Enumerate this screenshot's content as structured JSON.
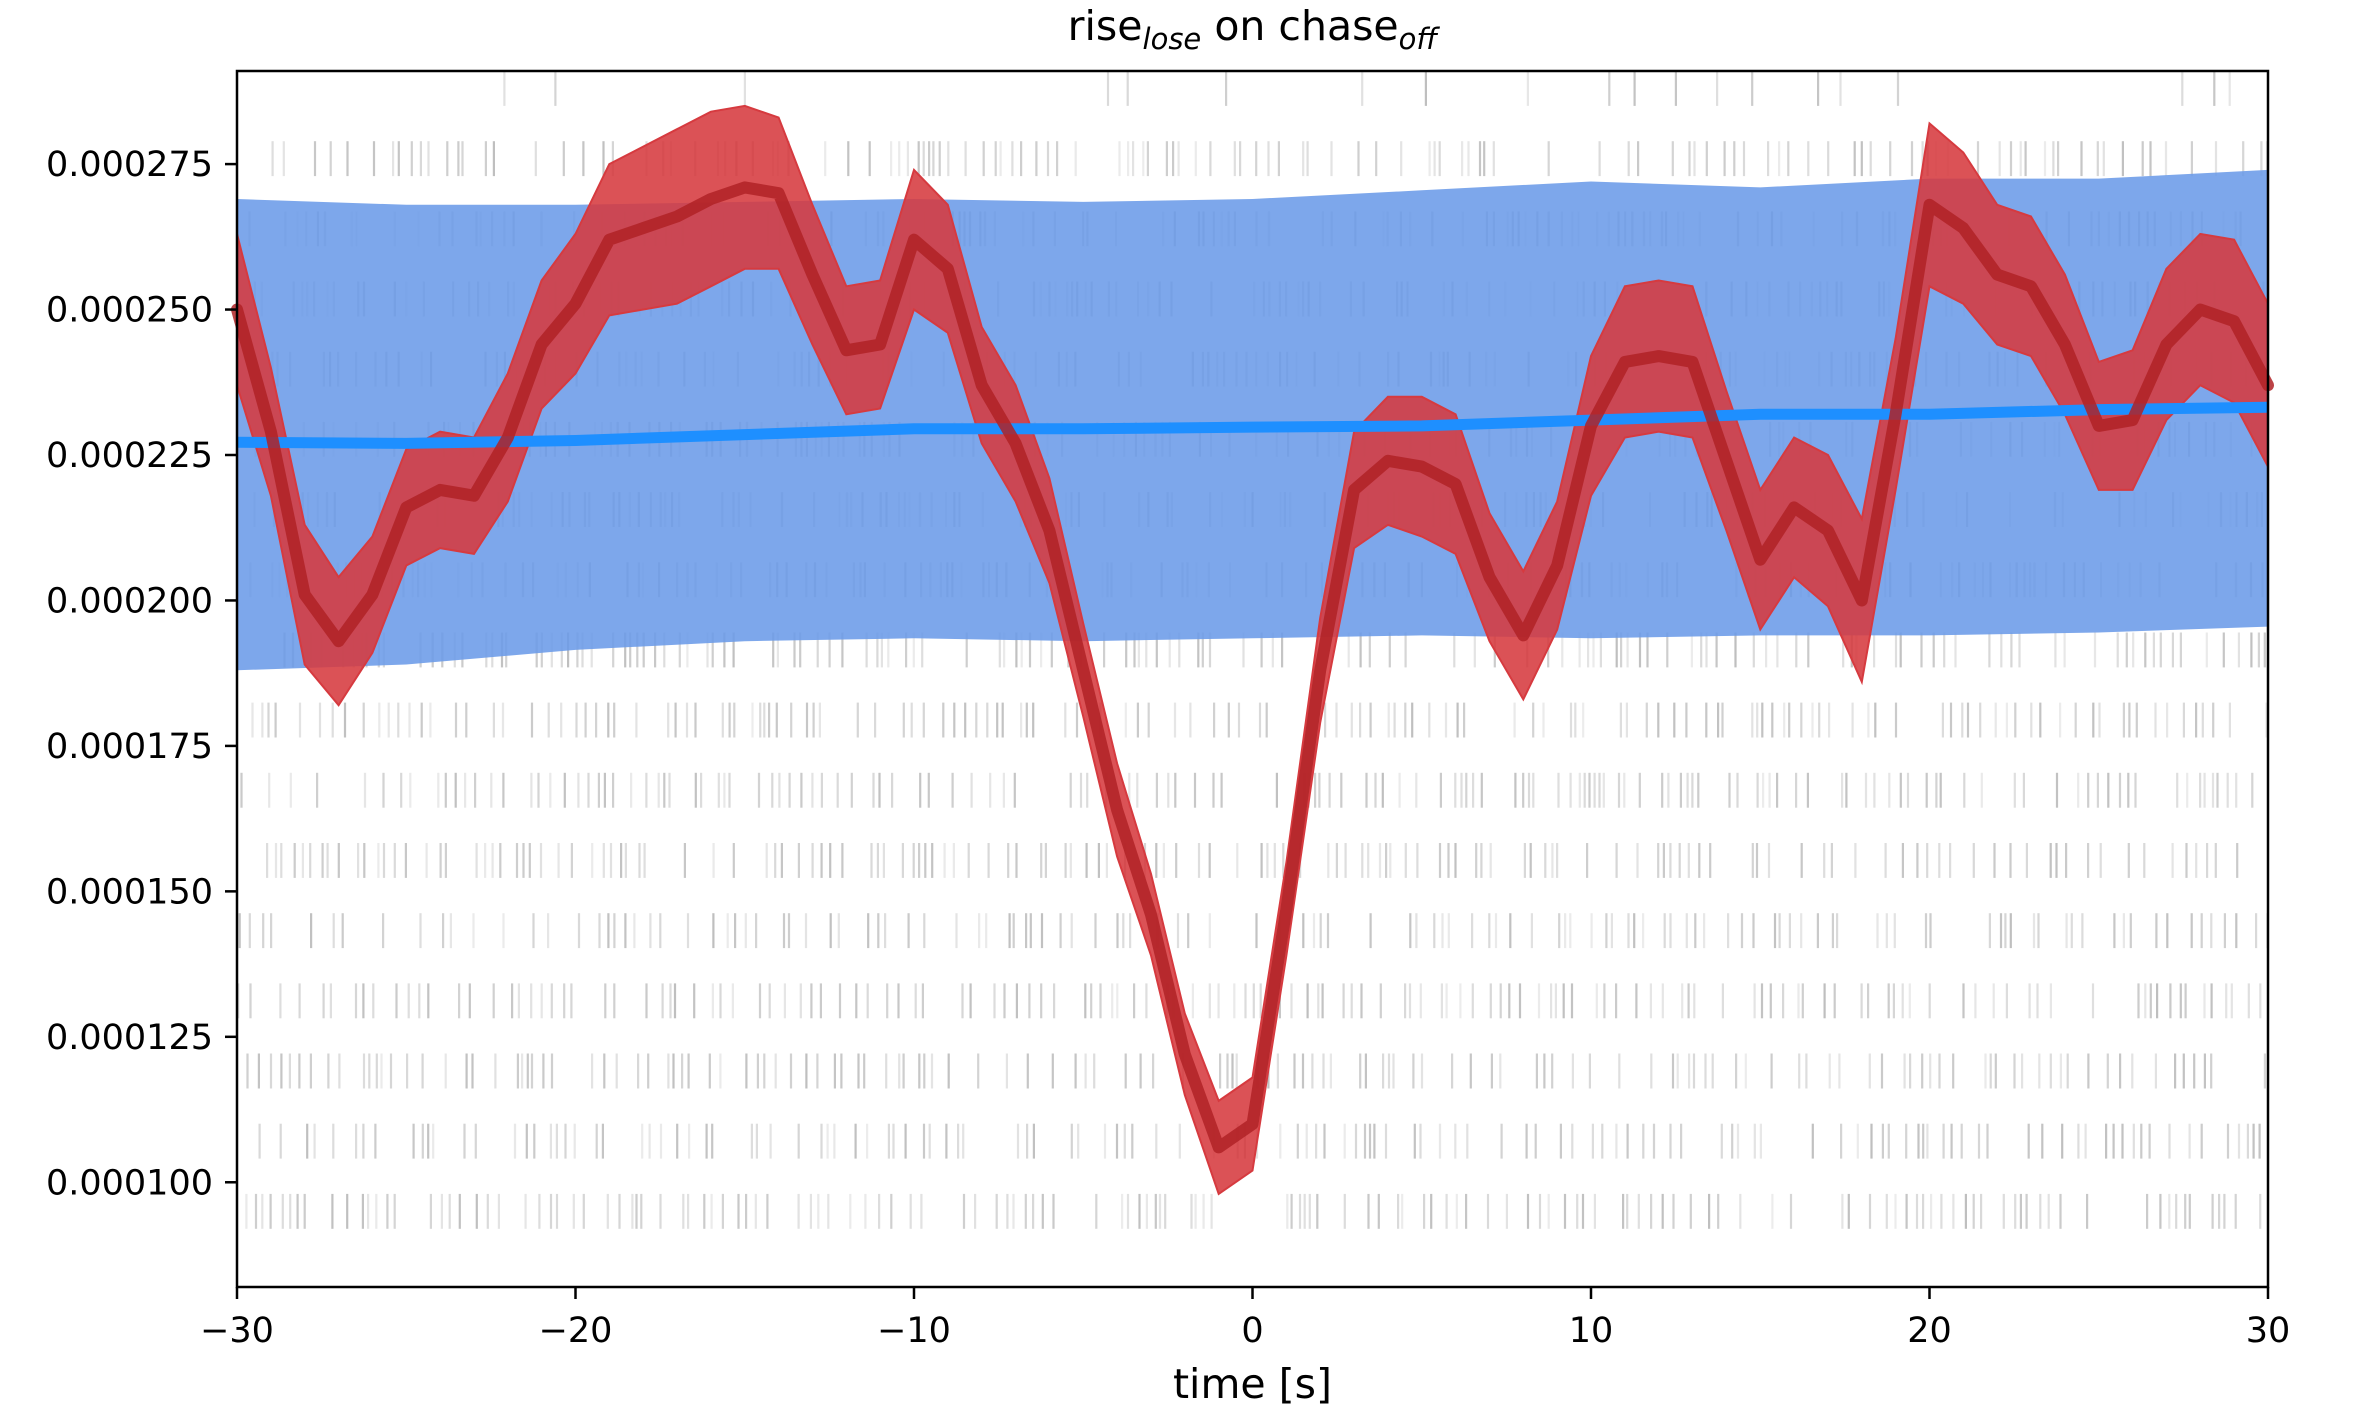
{
  "chart_data": {
    "type": "line",
    "title": {
      "main": "rise",
      "sub1": "lose",
      "mid": " on chase",
      "sub2": "off"
    },
    "xlabel": "time [s]",
    "ylabel": "",
    "xlim": [
      -30,
      30
    ],
    "ylim": [
      8.2e-05,
      0.000291
    ],
    "xticks": [
      -30,
      -20,
      -10,
      0,
      10,
      20,
      30
    ],
    "xtick_labels": [
      "−30",
      "−20",
      "−10",
      "0",
      "10",
      "20",
      "30"
    ],
    "yticks": [
      0.0001,
      0.000125,
      0.00015,
      0.000175,
      0.0002,
      0.000225,
      0.00025,
      0.000275
    ],
    "ytick_labels": [
      "0.000100",
      "0.000125",
      "0.000150",
      "0.000175",
      "0.000200",
      "0.000225",
      "0.000250",
      "0.000275"
    ],
    "grid": false,
    "colors": {
      "baseline_line": "#1e8fff",
      "baseline_band": "#6b9be8",
      "event_line": "#b02226",
      "event_band": "#d63a3f",
      "raster": "#808080"
    },
    "series": [
      {
        "role": "baseline",
        "x": [
          -30,
          -25,
          -20,
          -15,
          -10,
          -5,
          0,
          5,
          10,
          15,
          20,
          25,
          30
        ],
        "mean": [
          0.0002272,
          0.000227,
          0.0002275,
          0.0002285,
          0.0002295,
          0.0002295,
          0.0002298,
          0.00023,
          0.000231,
          0.000232,
          0.000232,
          0.0002328,
          0.0002332
        ],
        "upper": [
          0.000269,
          0.000268,
          0.000268,
          0.0002685,
          0.000269,
          0.0002685,
          0.000269,
          0.0002705,
          0.000272,
          0.000271,
          0.0002725,
          0.0002725,
          0.000274
        ],
        "lower": [
          0.000188,
          0.000189,
          0.0001915,
          0.000193,
          0.0001935,
          0.000193,
          0.0001935,
          0.000194,
          0.0001935,
          0.000194,
          0.000194,
          0.0001945,
          0.0001955
        ]
      },
      {
        "role": "event",
        "x": [
          -30,
          -29,
          -28,
          -27,
          -26,
          -25,
          -24,
          -23,
          -22,
          -21,
          -20,
          -19,
          -18,
          -17,
          -16,
          -15,
          -14,
          -13,
          -12,
          -11,
          -10,
          -9,
          -8,
          -7,
          -6,
          -5,
          -4,
          -3,
          -2,
          -1,
          0,
          1,
          2,
          3,
          4,
          5,
          6,
          7,
          8,
          9,
          10,
          11,
          12,
          13,
          14,
          15,
          16,
          17,
          18,
          19,
          20,
          21,
          22,
          23,
          24,
          25,
          26,
          27,
          28,
          29,
          30
        ],
        "mean": [
          0.00025,
          0.000229,
          0.000201,
          0.000193,
          0.000201,
          0.000216,
          0.000219,
          0.000218,
          0.000228,
          0.000244,
          0.000251,
          0.000262,
          0.000264,
          0.000266,
          0.000269,
          0.000271,
          0.00027,
          0.000256,
          0.000243,
          0.000244,
          0.000262,
          0.000257,
          0.000237,
          0.000227,
          0.000212,
          0.000188,
          0.000164,
          0.000146,
          0.000122,
          0.000106,
          0.00011,
          0.000147,
          0.000188,
          0.000219,
          0.000224,
          0.000223,
          0.00022,
          0.000204,
          0.000194,
          0.000206,
          0.00023,
          0.000241,
          0.000242,
          0.000241,
          0.000224,
          0.000207,
          0.000216,
          0.000212,
          0.0002,
          0.000232,
          0.000268,
          0.000264,
          0.000256,
          0.000254,
          0.000244,
          0.00023,
          0.000231,
          0.000244,
          0.00025,
          0.000248,
          0.000237
        ]
      }
    ],
    "event_band_width": [
      1.3e-05,
      1.1e-05,
      1.2e-05,
      1.1e-05,
      1e-05,
      1e-05,
      1e-05,
      1e-05,
      1.1e-05,
      1.1e-05,
      1.2e-05,
      1.3e-05,
      1.4e-05,
      1.5e-05,
      1.5e-05,
      1.4e-05,
      1.3e-05,
      1.2e-05,
      1.1e-05,
      1.1e-05,
      1.2e-05,
      1.1e-05,
      1e-05,
      1e-05,
      9e-06,
      8e-06,
      8e-06,
      7e-06,
      7e-06,
      8e-06,
      8e-06,
      8e-06,
      9e-06,
      1e-05,
      1.1e-05,
      1.2e-05,
      1.2e-05,
      1.1e-05,
      1.1e-05,
      1.1e-05,
      1.2e-05,
      1.3e-05,
      1.3e-05,
      1.3e-05,
      1.2e-05,
      1.2e-05,
      1.2e-05,
      1.3e-05,
      1.4e-05,
      1.3e-05,
      1.4e-05,
      1.3e-05,
      1.2e-05,
      1.2e-05,
      1.2e-05,
      1.1e-05,
      1.2e-05,
      1.3e-05,
      1.3e-05,
      1.4e-05,
      1.4e-05
    ],
    "raster": {
      "rows": 17,
      "top_y": 0.000288,
      "bottom_y": 9.5e-05,
      "x_range": [
        -30,
        30
      ],
      "tick_height": 6e-06
    }
  }
}
